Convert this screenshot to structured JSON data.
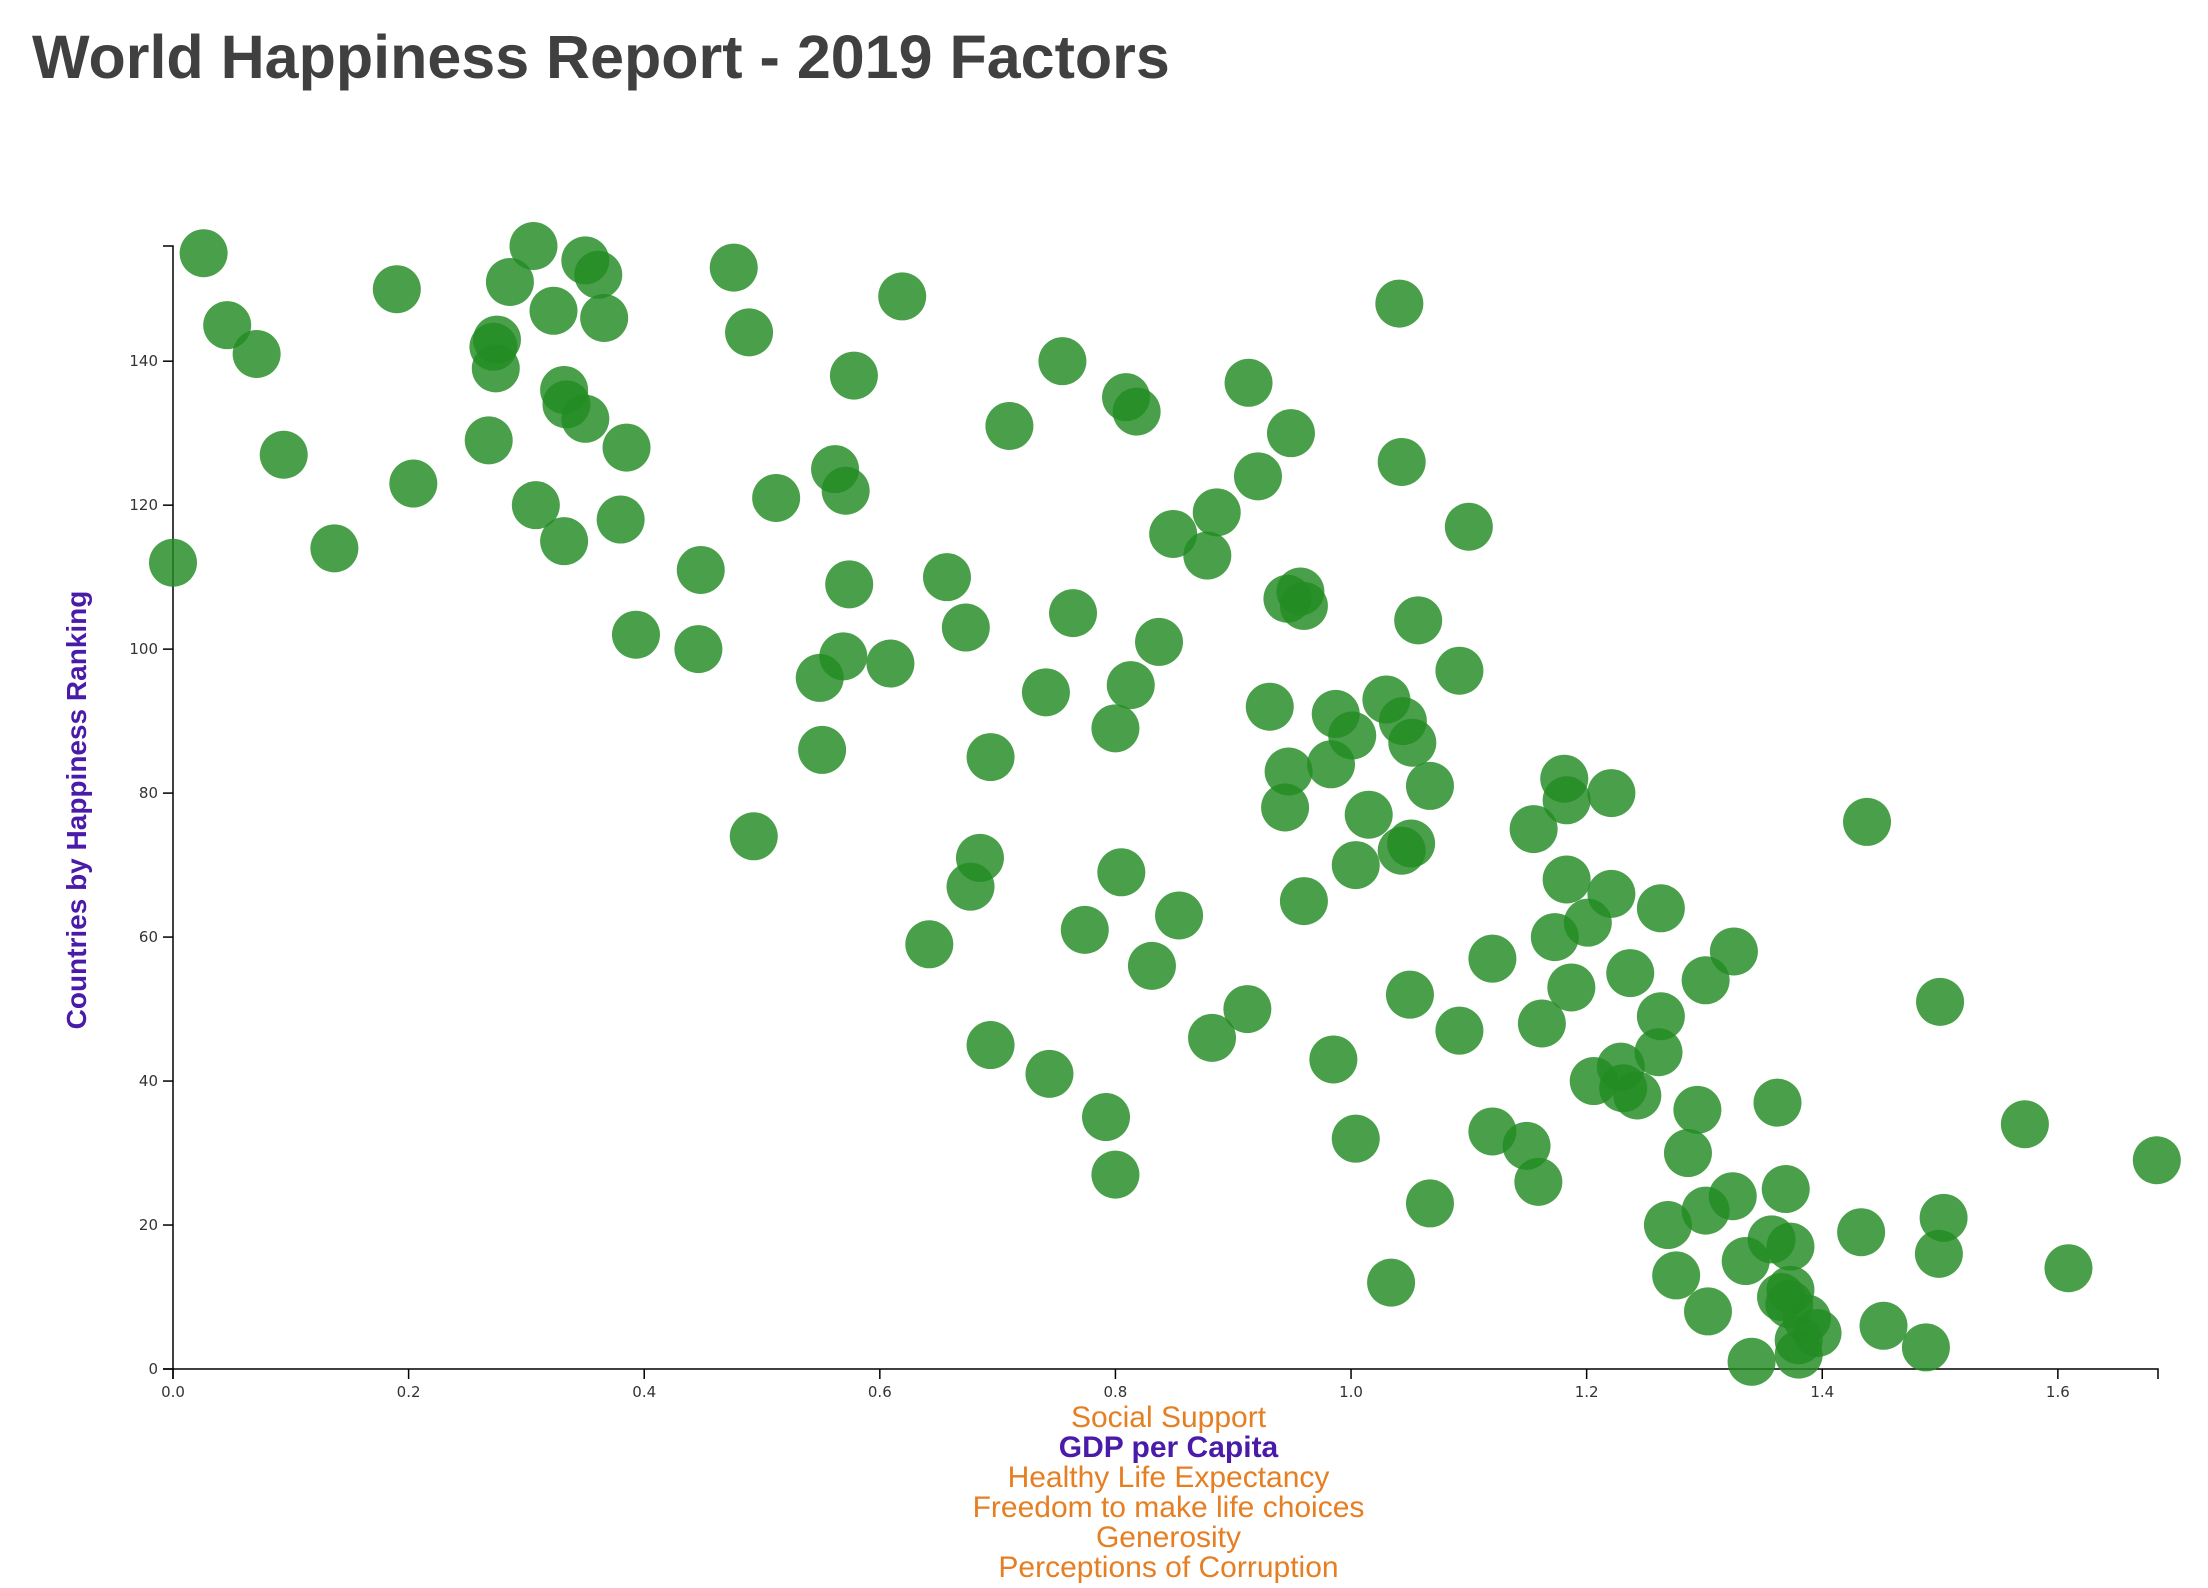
{
  "title": "World Happiness Report - 2019 Factors",
  "colors": {
    "point": "#228b22",
    "active_label": "#4a1aa8",
    "inactive_label": "#e67e22",
    "title": "#404040"
  },
  "x_options": [
    {
      "label": "Social Support",
      "active": false
    },
    {
      "label": "GDP per Capita",
      "active": true
    },
    {
      "label": "Healthy Life Expectancy",
      "active": false
    },
    {
      "label": "Freedom to make life choices",
      "active": false
    },
    {
      "label": "Generosity",
      "active": false
    },
    {
      "label": "Perceptions of Corruption",
      "active": false
    }
  ],
  "chart_data": {
    "type": "scatter",
    "title": "World Happiness Report - 2019 Factors",
    "xlabel": "GDP per Capita",
    "ylabel": "Countries by Happiness Ranking",
    "xlim": [
      0,
      1.685
    ],
    "ylim": [
      0,
      156
    ],
    "x_ticks": [
      0.0,
      0.2,
      0.4,
      0.6,
      0.8,
      1.0,
      1.2,
      1.4,
      1.6
    ],
    "y_ticks": [
      0,
      20,
      40,
      60,
      80,
      100,
      120,
      140
    ],
    "grid": false,
    "points": [
      [
        0.026,
        155
      ],
      [
        0.306,
        156
      ],
      [
        0.35,
        154
      ],
      [
        0.361,
        152
      ],
      [
        0.476,
        153
      ],
      [
        0.19,
        150
      ],
      [
        0.286,
        151
      ],
      [
        0.619,
        149
      ],
      [
        1.041,
        148
      ],
      [
        0.046,
        145
      ],
      [
        0.275,
        143
      ],
      [
        0.323,
        147
      ],
      [
        0.366,
        146
      ],
      [
        0.489,
        144
      ],
      [
        0.272,
        142
      ],
      [
        0.071,
        141
      ],
      [
        0.274,
        139
      ],
      [
        0.755,
        140
      ],
      [
        0.578,
        138
      ],
      [
        0.913,
        137
      ],
      [
        0.809,
        135
      ],
      [
        0.332,
        136
      ],
      [
        0.334,
        134
      ],
      [
        0.35,
        132
      ],
      [
        0.818,
        133
      ],
      [
        0.71,
        131
      ],
      [
        0.949,
        130
      ],
      [
        0.268,
        129
      ],
      [
        0.385,
        128
      ],
      [
        0.094,
        127
      ],
      [
        1.043,
        126
      ],
      [
        0.562,
        125
      ],
      [
        0.921,
        124
      ],
      [
        0.204,
        123
      ],
      [
        0.571,
        122
      ],
      [
        0.512,
        121
      ],
      [
        0.308,
        120
      ],
      [
        0.886,
        119
      ],
      [
        0.38,
        118
      ],
      [
        1.1,
        117
      ],
      [
        0.849,
        116
      ],
      [
        0.332,
        115
      ],
      [
        0.137,
        114
      ],
      [
        0.878,
        113
      ],
      [
        0.0,
        112
      ],
      [
        0.448,
        111
      ],
      [
        0.657,
        110
      ],
      [
        0.574,
        109
      ],
      [
        0.957,
        108
      ],
      [
        0.946,
        107
      ],
      [
        0.96,
        106
      ],
      [
        0.764,
        105
      ],
      [
        1.057,
        104
      ],
      [
        0.673,
        103
      ],
      [
        0.393,
        102
      ],
      [
        0.837,
        101
      ],
      [
        0.446,
        100
      ],
      [
        0.569,
        99
      ],
      [
        0.609,
        98
      ],
      [
        1.092,
        97
      ],
      [
        0.549,
        96
      ],
      [
        0.813,
        95
      ],
      [
        0.741,
        94
      ],
      [
        1.03,
        93
      ],
      [
        0.931,
        92
      ],
      [
        0.987,
        91
      ],
      [
        1.044,
        90
      ],
      [
        0.8,
        89
      ],
      [
        1.001,
        88
      ],
      [
        1.052,
        87
      ],
      [
        0.551,
        86
      ],
      [
        0.694,
        85
      ],
      [
        0.983,
        84
      ],
      [
        0.947,
        83
      ],
      [
        1.181,
        82
      ],
      [
        1.067,
        81
      ],
      [
        1.221,
        80
      ],
      [
        1.183,
        79
      ],
      [
        0.944,
        78
      ],
      [
        1.015,
        77
      ],
      [
        1.438,
        76
      ],
      [
        1.155,
        75
      ],
      [
        0.493,
        74
      ],
      [
        1.051,
        73
      ],
      [
        1.043,
        72
      ],
      [
        0.685,
        71
      ],
      [
        1.004,
        70
      ],
      [
        0.805,
        69
      ],
      [
        1.183,
        68
      ],
      [
        0.677,
        67
      ],
      [
        1.221,
        66
      ],
      [
        0.96,
        65
      ],
      [
        1.263,
        64
      ],
      [
        0.854,
        63
      ],
      [
        1.201,
        62
      ],
      [
        0.774,
        61
      ],
      [
        1.173,
        60
      ],
      [
        0.642,
        59
      ],
      [
        1.325,
        58
      ],
      [
        1.12,
        57
      ],
      [
        0.831,
        56
      ],
      [
        1.237,
        55
      ],
      [
        1.301,
        54
      ],
      [
        1.187,
        53
      ],
      [
        1.05,
        52
      ],
      [
        1.5,
        51
      ],
      [
        0.912,
        50
      ],
      [
        1.263,
        49
      ],
      [
        1.162,
        48
      ],
      [
        1.092,
        47
      ],
      [
        0.882,
        46
      ],
      [
        0.694,
        45
      ],
      [
        1.261,
        44
      ],
      [
        0.985,
        43
      ],
      [
        1.229,
        42
      ],
      [
        0.744,
        41
      ],
      [
        1.206,
        40
      ],
      [
        1.231,
        39
      ],
      [
        1.243,
        38
      ],
      [
        1.362,
        37
      ],
      [
        1.294,
        36
      ],
      [
        0.792,
        35
      ],
      [
        1.572,
        34
      ],
      [
        1.12,
        33
      ],
      [
        1.004,
        32
      ],
      [
        1.149,
        31
      ],
      [
        1.286,
        30
      ],
      [
        1.684,
        29
      ],
      [
        0.8,
        27
      ],
      [
        1.159,
        26
      ],
      [
        1.369,
        25
      ],
      [
        1.324,
        24
      ],
      [
        1.067,
        23
      ],
      [
        1.301,
        22
      ],
      [
        1.503,
        21
      ],
      [
        1.269,
        20
      ],
      [
        1.433,
        19
      ],
      [
        1.357,
        18
      ],
      [
        1.373,
        17
      ],
      [
        1.499,
        16
      ],
      [
        1.335,
        15
      ],
      [
        1.609,
        14
      ],
      [
        1.276,
        13
      ],
      [
        1.034,
        12
      ],
      [
        1.373,
        11
      ],
      [
        1.365,
        10
      ],
      [
        1.372,
        9
      ],
      [
        1.303,
        8
      ],
      [
        1.387,
        7
      ],
      [
        1.452,
        6
      ],
      [
        1.396,
        5
      ],
      [
        1.38,
        4
      ],
      [
        1.488,
        3
      ],
      [
        1.38,
        2
      ],
      [
        1.34,
        1
      ]
    ]
  }
}
